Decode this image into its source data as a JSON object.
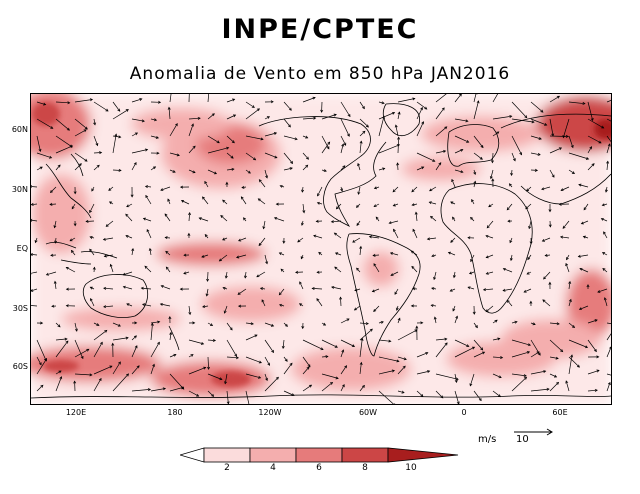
{
  "header": {
    "title": "INPE/CPTEC",
    "subtitle": "Anomalia de Vento em 850 hPa JAN2016"
  },
  "axes": {
    "lat_ticks": [
      "60N",
      "30N",
      "EQ",
      "30S",
      "60S"
    ],
    "lon_ticks": [
      "120E",
      "180",
      "120W",
      "60W",
      "0",
      "60E"
    ]
  },
  "colorbar": {
    "labels": [
      "2",
      "4",
      "6",
      "8",
      "10"
    ],
    "colors": [
      "#ffffff",
      "#fbdcdc",
      "#f4aeae",
      "#e67b7b",
      "#cc4646",
      "#a81e1e"
    ]
  },
  "reference_vector": {
    "unit": "m/s",
    "value": "10"
  },
  "map": {
    "land_color": "#000000",
    "arrow_color": "#000000"
  }
}
